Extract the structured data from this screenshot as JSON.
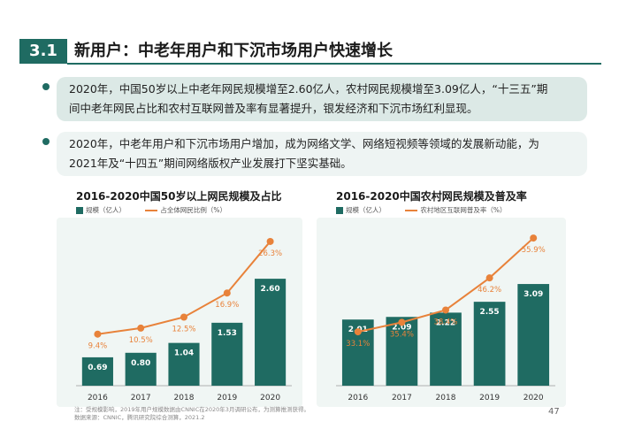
{
  "header": {
    "number": "3.1",
    "title": "新用户：中老年用户和下沉市场用户快速增长"
  },
  "bullets": [
    {
      "line1": "2020年，中国50岁以上中老年网民规模增至2.60亿人，农村网民规模增至3.09亿人，“十三五”期",
      "line2": "间中老年网民占比和农村互联网普及率有显著提升，银发经济和下沉市场红利显现。"
    },
    {
      "line1": "2020年，中老年用户和下沉市场用户增加，成为网络文学、网络短视频等领域的发展新动能，为",
      "line2": "2021年及“十四五”期间网络版权产业发展打下坚实基础。"
    }
  ],
  "colors": {
    "bar": "#1f6b62",
    "line": "#e8823a",
    "panel": "#f0f6f4"
  },
  "chart_data": [
    {
      "type": "bar",
      "title": "2016-2020中国50岁以上网民规模及占比",
      "categories": [
        "2016",
        "2017",
        "2018",
        "2019",
        "2020"
      ],
      "series": [
        {
          "name": "规模（亿人）",
          "type": "bar",
          "values": [
            0.69,
            0.8,
            1.04,
            1.53,
            2.6
          ],
          "labels": [
            "0.69",
            "0.80",
            "1.04",
            "1.53",
            "2.60"
          ]
        },
        {
          "name": "占全体网民比例（%）",
          "type": "line",
          "values": [
            9.4,
            10.5,
            12.5,
            16.9,
            26.3
          ],
          "labels": [
            "9.4%",
            "10.5%",
            "12.5%",
            "16.9%",
            "26.3%"
          ]
        }
      ],
      "ylim_bar": [
        0,
        4
      ],
      "ylim_line": [
        0,
        30
      ],
      "legend": "top-left"
    },
    {
      "type": "bar",
      "title": "2016-2020中国农村网民规模及普及率",
      "categories": [
        "2016",
        "2017",
        "2018",
        "2019",
        "2020"
      ],
      "series": [
        {
          "name": "规模（亿人）",
          "type": "bar",
          "values": [
            2.01,
            2.09,
            2.22,
            2.55,
            3.09
          ],
          "labels": [
            "2.01",
            "2.09",
            "2.22",
            "2.55",
            "3.09"
          ]
        },
        {
          "name": "农村地区互联网普及率（%）",
          "type": "line",
          "values": [
            33.1,
            35.4,
            38.4,
            46.2,
            55.9
          ],
          "labels": [
            "33.1%",
            "35.4%",
            "38.4%",
            "46.2%",
            "55.9%"
          ]
        }
      ],
      "ylim_bar": [
        0,
        5
      ],
      "ylim_line": [
        20,
        60
      ],
      "legend": "top-left"
    }
  ],
  "footnote": {
    "line1": "注：受规模影响，2019年用户规模数据由CNNIC在2020年3月调研公布，为测算推测获得。",
    "line2": "数据来源：CNNIC，腾讯研究院综合测算，2021.2"
  },
  "page_number": "47"
}
